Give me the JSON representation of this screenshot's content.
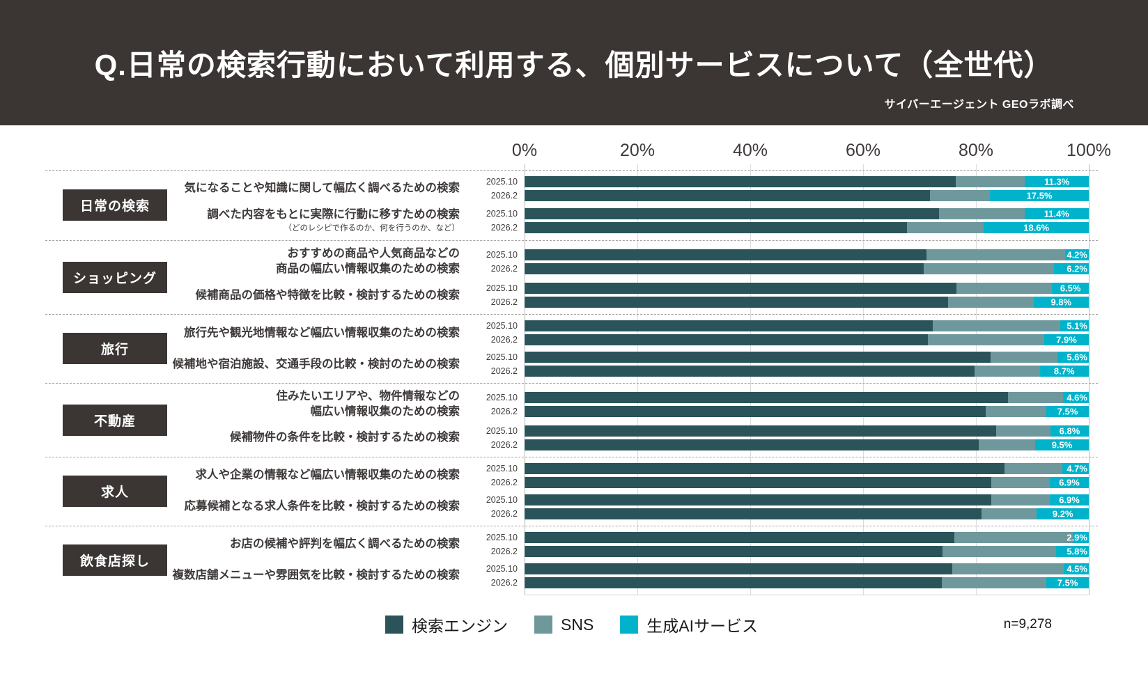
{
  "header": {
    "title": "Q.日常の検索行動において利用する、個別サービスについて（全世代）",
    "credit": "サイバーエージェント  GEOラボ調べ"
  },
  "axis": {
    "ticks": [
      "0%",
      "20%",
      "40%",
      "60%",
      "80%",
      "100%"
    ]
  },
  "legend": [
    {
      "label": "検索エンジン",
      "color": "#2a545a"
    },
    {
      "label": "SNS",
      "color": "#6f989d"
    },
    {
      "label": "生成AIサービス",
      "color": "#00b3cb"
    }
  ],
  "sample_size": "n=9,278",
  "colors": {
    "header_bg": "#3b3534",
    "search_engine": "#2a545a",
    "sns": "#6f989d",
    "gen_ai": "#00b3cb",
    "gridline": "#dcdcdc",
    "separator": "#a3a3a3"
  },
  "chart_data": {
    "type": "bar",
    "variant": "horizontal-stacked-100pct",
    "xlim": [
      0,
      100
    ],
    "x_ticks": [
      0,
      20,
      40,
      60,
      80,
      100
    ],
    "series_names": [
      "検索エンジン",
      "SNS",
      "生成AIサービス"
    ],
    "value_labels_shown_for": "生成AIサービス",
    "groups": [
      {
        "category": "日常の検索",
        "questions": [
          {
            "label_lines": [
              "気になることや知識に関して幅広く調べるための検索"
            ],
            "note": "",
            "rows": [
              {
                "period": "2025.10",
                "search_engine": 76.4,
                "sns": 12.3,
                "gen_ai": 11.3,
                "gen_ai_label": "11.3%"
              },
              {
                "period": "2026.2",
                "search_engine": 71.9,
                "sns": 10.6,
                "gen_ai": 17.5,
                "gen_ai_label": "17.5%"
              }
            ]
          },
          {
            "label_lines": [
              "調べた内容をもとに実際に行動に移すための検索"
            ],
            "note": "（どのレシピで作るのか、何を行うのか、など）",
            "rows": [
              {
                "period": "2025.10",
                "search_engine": 73.4,
                "sns": 15.2,
                "gen_ai": 11.4,
                "gen_ai_label": "11.4%"
              },
              {
                "period": "2026.2",
                "search_engine": 67.8,
                "sns": 13.6,
                "gen_ai": 18.6,
                "gen_ai_label": "18.6%"
              }
            ]
          }
        ]
      },
      {
        "category": "ショッピング",
        "questions": [
          {
            "label_lines": [
              "おすすめの商品や人気商品などの",
              "商品の幅広い情報収集のための検索"
            ],
            "note": "",
            "rows": [
              {
                "period": "2025.10",
                "search_engine": 71.2,
                "sns": 24.6,
                "gen_ai": 4.2,
                "gen_ai_label": "4.2%"
              },
              {
                "period": "2026.2",
                "search_engine": 70.8,
                "sns": 23.0,
                "gen_ai": 6.2,
                "gen_ai_label": "6.2%"
              }
            ]
          },
          {
            "label_lines": [
              "候補商品の価格や特徴を比較・検討するための検索"
            ],
            "note": "",
            "rows": [
              {
                "period": "2025.10",
                "search_engine": 76.5,
                "sns": 17.0,
                "gen_ai": 6.5,
                "gen_ai_label": "6.5%"
              },
              {
                "period": "2026.2",
                "search_engine": 75.0,
                "sns": 15.2,
                "gen_ai": 9.8,
                "gen_ai_label": "9.8%"
              }
            ]
          }
        ]
      },
      {
        "category": "旅行",
        "questions": [
          {
            "label_lines": [
              "旅行先や観光地情報など幅広い情報収集のための検索"
            ],
            "note": "",
            "rows": [
              {
                "period": "2025.10",
                "search_engine": 72.4,
                "sns": 22.5,
                "gen_ai": 5.1,
                "gen_ai_label": "5.1%"
              },
              {
                "period": "2026.2",
                "search_engine": 71.5,
                "sns": 20.6,
                "gen_ai": 7.9,
                "gen_ai_label": "7.9%"
              }
            ]
          },
          {
            "label_lines": [
              "候補地や宿泊施設、交通手段の比較・検討のための検索"
            ],
            "note": "",
            "rows": [
              {
                "period": "2025.10",
                "search_engine": 82.6,
                "sns": 11.8,
                "gen_ai": 5.6,
                "gen_ai_label": "5.6%"
              },
              {
                "period": "2026.2",
                "search_engine": 79.7,
                "sns": 11.6,
                "gen_ai": 8.7,
                "gen_ai_label": "8.7%"
              }
            ]
          }
        ]
      },
      {
        "category": "不動産",
        "questions": [
          {
            "label_lines": [
              "住みたいエリアや、物件情報などの",
              "幅広い情報収集のための検索"
            ],
            "note": "",
            "rows": [
              {
                "period": "2025.10",
                "search_engine": 85.7,
                "sns": 9.7,
                "gen_ai": 4.6,
                "gen_ai_label": "4.6%"
              },
              {
                "period": "2026.2",
                "search_engine": 81.7,
                "sns": 10.8,
                "gen_ai": 7.5,
                "gen_ai_label": "7.5%"
              }
            ]
          },
          {
            "label_lines": [
              "候補物件の条件を比較・検討するための検索"
            ],
            "note": "",
            "rows": [
              {
                "period": "2025.10",
                "search_engine": 83.6,
                "sns": 9.6,
                "gen_ai": 6.8,
                "gen_ai_label": "6.8%"
              },
              {
                "period": "2026.2",
                "search_engine": 80.5,
                "sns": 10.0,
                "gen_ai": 9.5,
                "gen_ai_label": "9.5%"
              }
            ]
          }
        ]
      },
      {
        "category": "求人",
        "questions": [
          {
            "label_lines": [
              "求人や企業の情報など幅広い情報収集のための検索"
            ],
            "note": "",
            "rows": [
              {
                "period": "2025.10",
                "search_engine": 85.1,
                "sns": 10.2,
                "gen_ai": 4.7,
                "gen_ai_label": "4.7%"
              },
              {
                "period": "2026.2",
                "search_engine": 82.7,
                "sns": 10.4,
                "gen_ai": 6.9,
                "gen_ai_label": "6.9%"
              }
            ]
          },
          {
            "label_lines": [
              "応募候補となる求人条件を比較・検討するための検索"
            ],
            "note": "",
            "rows": [
              {
                "period": "2025.10",
                "search_engine": 82.7,
                "sns": 10.4,
                "gen_ai": 6.9,
                "gen_ai_label": "6.9%"
              },
              {
                "period": "2026.2",
                "search_engine": 81.0,
                "sns": 9.8,
                "gen_ai": 9.2,
                "gen_ai_label": "9.2%"
              }
            ]
          }
        ]
      },
      {
        "category": "飲食店探し",
        "questions": [
          {
            "label_lines": [
              "お店の候補や評判を幅広く調べるための検索"
            ],
            "note": "",
            "rows": [
              {
                "period": "2025.10",
                "search_engine": 76.2,
                "sns": 20.9,
                "gen_ai": 2.9,
                "gen_ai_label": "2.9%"
              },
              {
                "period": "2026.2",
                "search_engine": 74.1,
                "sns": 20.1,
                "gen_ai": 5.8,
                "gen_ai_label": "5.8%"
              }
            ]
          },
          {
            "label_lines": [
              "複数店舗メニューや雰囲気を比較・検討するための検索"
            ],
            "note": "",
            "rows": [
              {
                "period": "2025.10",
                "search_engine": 75.8,
                "sns": 19.7,
                "gen_ai": 4.5,
                "gen_ai_label": "4.5%"
              },
              {
                "period": "2026.2",
                "search_engine": 74.0,
                "sns": 18.5,
                "gen_ai": 7.5,
                "gen_ai_label": "7.5%"
              }
            ]
          }
        ]
      }
    ]
  }
}
